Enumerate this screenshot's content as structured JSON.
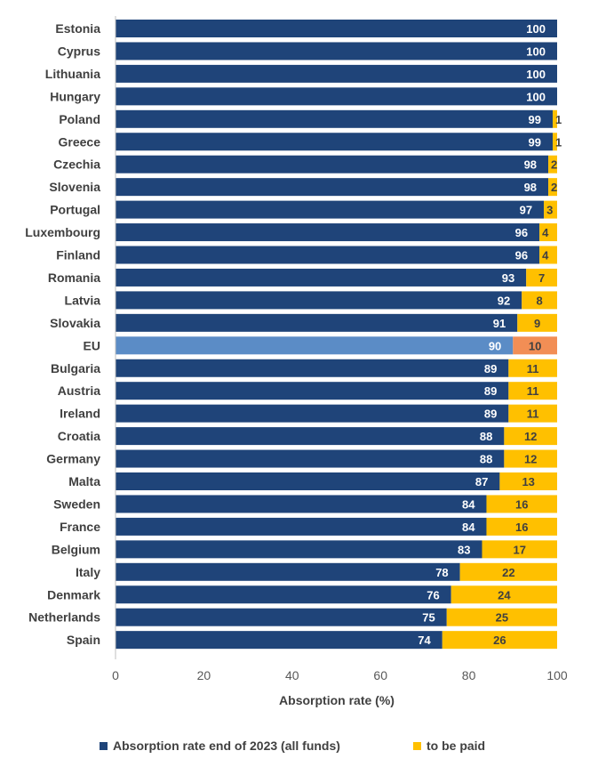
{
  "chart_data": {
    "type": "bar",
    "orientation": "horizontal",
    "stacked": true,
    "categories": [
      "Estonia",
      "Cyprus",
      "Lithuania",
      "Hungary",
      "Poland",
      "Greece",
      "Czechia",
      "Slovenia",
      "Portugal",
      "Luxembourg",
      "Finland",
      "Romania",
      "Latvia",
      "Slovakia",
      "EU",
      "Bulgaria",
      "Austria",
      "Ireland",
      "Croatia",
      "Germany",
      "Malta",
      "Sweden",
      "France",
      "Belgium",
      "Italy",
      "Denmark",
      "Netherlands",
      "Spain"
    ],
    "series": [
      {
        "name": "Absorption rate end of 2023 (all funds)",
        "color": "#1f4479",
        "highlight_color": "#5b8cc6",
        "label_color": "#ffffff",
        "values": [
          100,
          100,
          100,
          100,
          99,
          99,
          98,
          98,
          97,
          96,
          96,
          93,
          92,
          91,
          90,
          89,
          89,
          89,
          88,
          88,
          87,
          84,
          84,
          83,
          78,
          76,
          75,
          74
        ]
      },
      {
        "name": "to be paid",
        "color": "#ffc000",
        "highlight_color": "#f28e55",
        "label_color": "#404040",
        "values": [
          0,
          0,
          0,
          0,
          1,
          1,
          2,
          2,
          3,
          4,
          4,
          7,
          8,
          9,
          10,
          11,
          11,
          11,
          12,
          12,
          13,
          16,
          16,
          17,
          22,
          24,
          25,
          26
        ]
      }
    ],
    "highlight_category": "EU",
    "xlabel": "Absorption rate (%)",
    "ylabel": "",
    "xlim": [
      0,
      100
    ],
    "xticks": [
      0,
      20,
      40,
      60,
      80,
      100
    ],
    "grid": false,
    "legend_position": "bottom"
  }
}
